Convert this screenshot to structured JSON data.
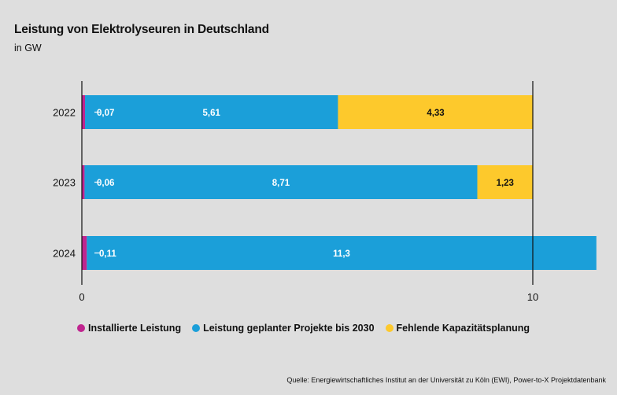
{
  "title": "Leistung von Elektrolyseuren in Deutschland",
  "subtitle": "in GW",
  "source": "Quelle: Energiewirtschaftliches Institut an der Universität zu Köln (EWI), Power-to-X Projektdatenbank",
  "colors": {
    "installed": "#c0258f",
    "planned": "#1b9fd9",
    "missing": "#fdc92c"
  },
  "chart_data": {
    "type": "bar",
    "orientation": "horizontal",
    "stacked": true,
    "title": "Leistung von Elektrolyseuren in Deutschland",
    "subtitle": "in GW",
    "xlabel": "",
    "ylabel": "",
    "xlim": [
      0,
      11.41
    ],
    "xticks": [
      0,
      10
    ],
    "xtick_labels": [
      "0",
      "10"
    ],
    "categories": [
      "2022",
      "2023",
      "2024"
    ],
    "series": [
      {
        "name": "Installierte Leistung",
        "color": "#c0258f",
        "values": [
          0.07,
          0.06,
          0.11
        ],
        "labels": [
          "0,07",
          "0,06",
          "0,11"
        ]
      },
      {
        "name": "Leistung geplanter Projekte bis 2030",
        "color": "#1b9fd9",
        "values": [
          5.61,
          8.71,
          11.3
        ],
        "labels": [
          "5,61",
          "8,71",
          "11,3"
        ]
      },
      {
        "name": "Fehlende Kapazitätsplanung",
        "color": "#fdc92c",
        "values": [
          4.33,
          1.23,
          0
        ],
        "labels": [
          "4,33",
          "1,23",
          ""
        ]
      }
    ],
    "legend": "bottom",
    "grid": false
  }
}
